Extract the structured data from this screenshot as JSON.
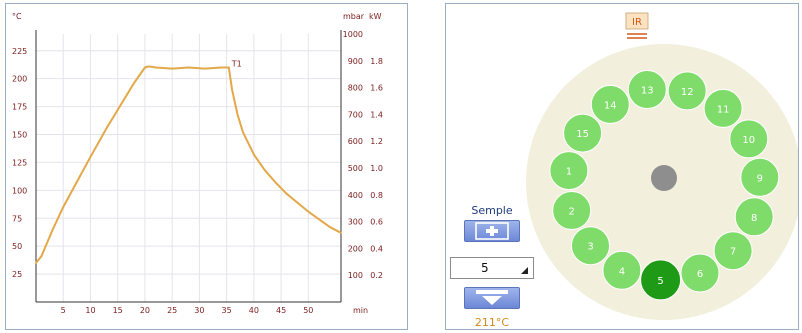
{
  "chart_data": {
    "type": "line",
    "y_left_unit": "°C",
    "y_right_units": [
      "mbar",
      "kW"
    ],
    "x_unit": "min",
    "x_ticks": [
      5,
      10,
      15,
      20,
      25,
      30,
      35,
      40,
      45,
      50
    ],
    "y_left_ticks": [
      25,
      50,
      75,
      100,
      125,
      150,
      175,
      200,
      225
    ],
    "y_right_mbar_ticks": [
      100,
      200,
      300,
      400,
      500,
      600,
      700,
      800,
      900,
      1000
    ],
    "y_right_kw_ticks": [
      "0.2",
      "0.4",
      "0.6",
      "0.8",
      "1.0",
      "1.2",
      "1.4",
      "1.6",
      "1.8"
    ],
    "xlim": [
      0,
      56
    ],
    "ylim": [
      0,
      240
    ],
    "grid": true,
    "annotation": "T1",
    "series": [
      {
        "color": "#e2a84a",
        "x": [
          0,
          1,
          3,
          5,
          8,
          10,
          13,
          15,
          18,
          20,
          20.6,
          22,
          25,
          28,
          31,
          34,
          35.4,
          36,
          37,
          38,
          40,
          42,
          44,
          46,
          48,
          50,
          52,
          54,
          56
        ],
        "y": [
          35,
          41,
          64,
          85,
          112,
          130,
          156,
          172,
          196,
          210,
          211,
          210,
          209,
          210,
          209,
          210,
          210,
          190,
          168,
          152,
          132,
          118,
          107,
          97,
          89,
          81,
          74,
          67,
          62
        ]
      }
    ]
  },
  "controls": {
    "label": "Semple",
    "value": "5",
    "temperature": "211°C"
  },
  "carousel": {
    "ir_label": "IR",
    "selected": "5",
    "positions": [
      "1",
      "2",
      "3",
      "4",
      "5",
      "6",
      "7",
      "8",
      "9",
      "10",
      "11",
      "12",
      "13",
      "14",
      "15"
    ]
  },
  "colors": {
    "slot": "#7fdb6a",
    "slot_selected": "#1f9a16",
    "tray": "#f2f0dc",
    "center": "#8e8e8e",
    "line": "#e2a84a"
  }
}
